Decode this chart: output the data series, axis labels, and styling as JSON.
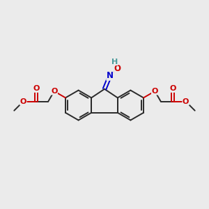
{
  "bg_color": "#ebebeb",
  "bond_color": "#2a2a2a",
  "nitrogen_color": "#0000cc",
  "oxygen_color": "#cc0000",
  "hydrogen_color": "#4a9a9a",
  "line_width": 1.4,
  "figsize": [
    3.0,
    3.0
  ],
  "dpi": 100,
  "xlim": [
    0,
    10
  ],
  "ylim": [
    0,
    10
  ]
}
